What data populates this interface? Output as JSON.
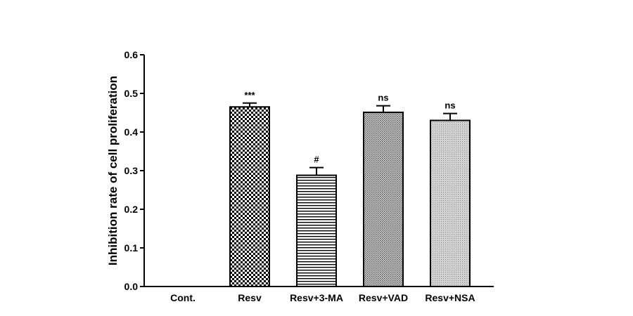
{
  "chart_data": {
    "type": "bar",
    "categories": [
      "Cont.",
      "Resv",
      "Resv+3-MA",
      "Resv+VAD",
      "Resv+NSA"
    ],
    "values": [
      0,
      0.465,
      0.288,
      0.451,
      0.43
    ],
    "errors": [
      0,
      0.01,
      0.02,
      0.017,
      0.018
    ],
    "annotations": [
      "",
      "***",
      "#",
      "ns",
      "ns"
    ],
    "patterns": [
      "none",
      "checkerboard",
      "horizontal-lines",
      "fine-crosshatch",
      "fine-dots"
    ],
    "title": "",
    "xlabel": "",
    "ylabel": "Inhibition rate of cell proliferation",
    "ylim": [
      0,
      0.6
    ],
    "yticks": [
      "0.0",
      "0.1",
      "0.2",
      "0.3",
      "0.4",
      "0.5",
      "0.6"
    ],
    "grid": false,
    "legend": "none"
  }
}
